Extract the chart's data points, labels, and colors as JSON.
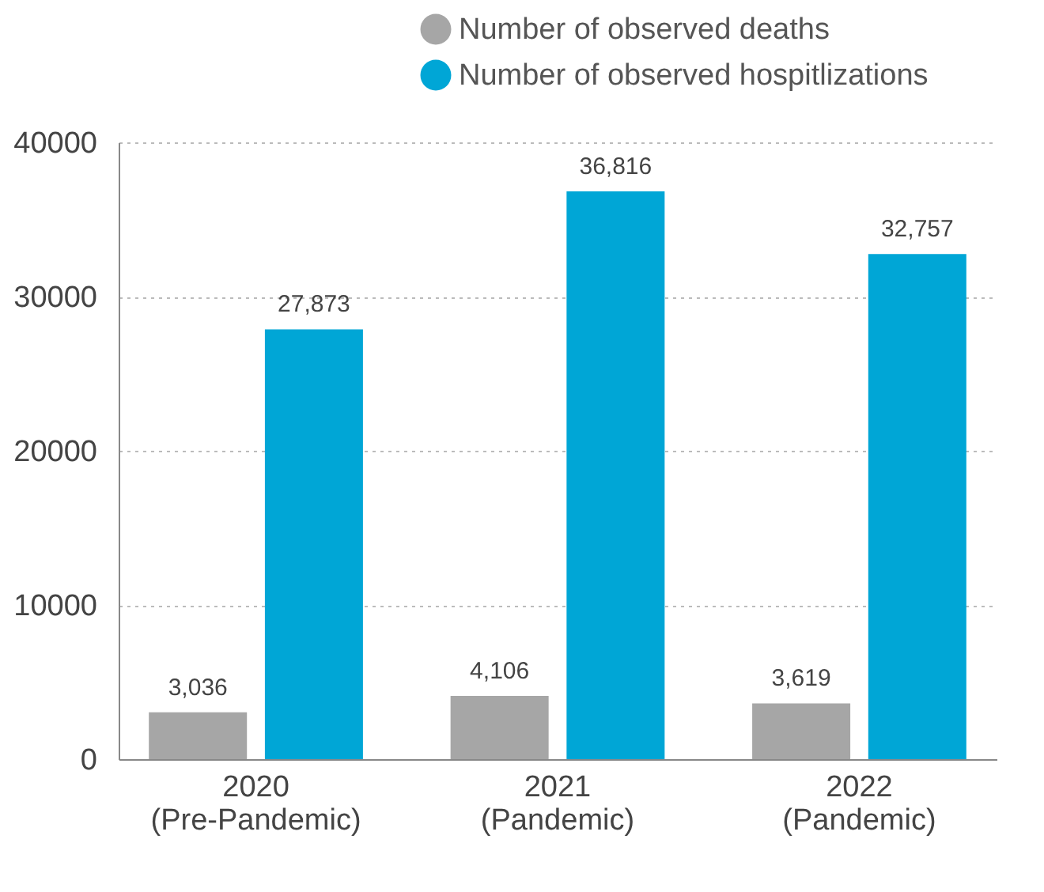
{
  "chart_data": {
    "type": "bar",
    "categories": [
      "2020\n(Pre-Pandemic)",
      "2021\n(Pandemic)",
      "2022\n(Pandemic)"
    ],
    "series": [
      {
        "name": "Number of observed deaths",
        "color": "#a6a6a6",
        "values": [
          3036,
          4106,
          3619
        ],
        "value_labels": [
          "3,036",
          "4,106",
          "3,619"
        ]
      },
      {
        "name": "Number of observed hospitlizations",
        "color": "#00a6d6",
        "values": [
          27873,
          36816,
          32757
        ],
        "value_labels": [
          "27,873",
          "36,816",
          "32,757"
        ]
      }
    ],
    "ylim": [
      0,
      40000
    ],
    "yticks": [
      0,
      10000,
      20000,
      30000,
      40000
    ],
    "grid": "y",
    "legend": "top right"
  }
}
